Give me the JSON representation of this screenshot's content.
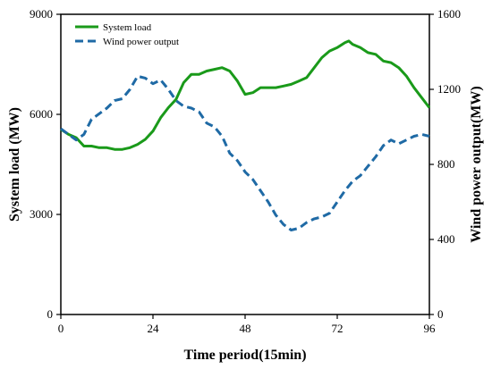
{
  "chart_data": {
    "type": "line",
    "xlabel": "Time period(15min)",
    "ylabel_left": "System load (MW)",
    "ylabel_right": "Wind power output(MW)",
    "x_ticks": [
      "0",
      "24",
      "48",
      "72",
      "96"
    ],
    "y_left_ticks": [
      "0",
      "3000",
      "6000",
      "9000"
    ],
    "y_right_ticks": [
      "0",
      "400",
      "800",
      "1200",
      "1600"
    ],
    "xlim": [
      0,
      96
    ],
    "ylim_left": [
      0,
      9000
    ],
    "ylim_right": [
      0,
      1600
    ],
    "grid": false,
    "legend_position": "top-left",
    "series": [
      {
        "name": "System load",
        "axis": "left",
        "color": "#1a9a1a",
        "style": "solid",
        "x": [
          0,
          2,
          4,
          6,
          8,
          10,
          12,
          14,
          16,
          18,
          20,
          22,
          24,
          26,
          28,
          30,
          32,
          34,
          36,
          38,
          40,
          42,
          44,
          46,
          48,
          50,
          52,
          54,
          56,
          58,
          60,
          62,
          64,
          66,
          68,
          70,
          72,
          74,
          75,
          76,
          78,
          80,
          82,
          84,
          86,
          88,
          90,
          92,
          94,
          96
        ],
        "values": [
          5550,
          5400,
          5300,
          5050,
          5050,
          5000,
          5000,
          4950,
          4950,
          5000,
          5100,
          5250,
          5500,
          5900,
          6200,
          6450,
          6950,
          7200,
          7200,
          7300,
          7350,
          7400,
          7300,
          7000,
          6600,
          6650,
          6800,
          6800,
          6800,
          6850,
          6900,
          7000,
          7100,
          7400,
          7700,
          7900,
          8000,
          8150,
          8200,
          8100,
          8000,
          7850,
          7800,
          7600,
          7550,
          7400,
          7150,
          6800,
          6500,
          6200
        ]
      },
      {
        "name": "Wind power output",
        "axis": "right",
        "color": "#1f6aa5",
        "style": "dashed",
        "x": [
          0,
          2,
          4,
          6,
          8,
          10,
          12,
          14,
          16,
          18,
          20,
          22,
          24,
          26,
          28,
          30,
          32,
          34,
          36,
          38,
          40,
          42,
          44,
          46,
          48,
          50,
          52,
          54,
          56,
          58,
          60,
          62,
          64,
          66,
          68,
          70,
          72,
          74,
          76,
          78,
          80,
          82,
          84,
          86,
          88,
          90,
          92,
          94,
          96
        ],
        "values": [
          990,
          960,
          930,
          960,
          1040,
          1070,
          1100,
          1140,
          1150,
          1200,
          1270,
          1260,
          1230,
          1250,
          1200,
          1140,
          1110,
          1100,
          1080,
          1020,
          1000,
          950,
          860,
          820,
          760,
          720,
          660,
          600,
          530,
          480,
          450,
          460,
          490,
          510,
          520,
          540,
          600,
          660,
          710,
          740,
          790,
          840,
          900,
          930,
          910,
          930,
          950,
          960,
          950
        ]
      }
    ]
  }
}
